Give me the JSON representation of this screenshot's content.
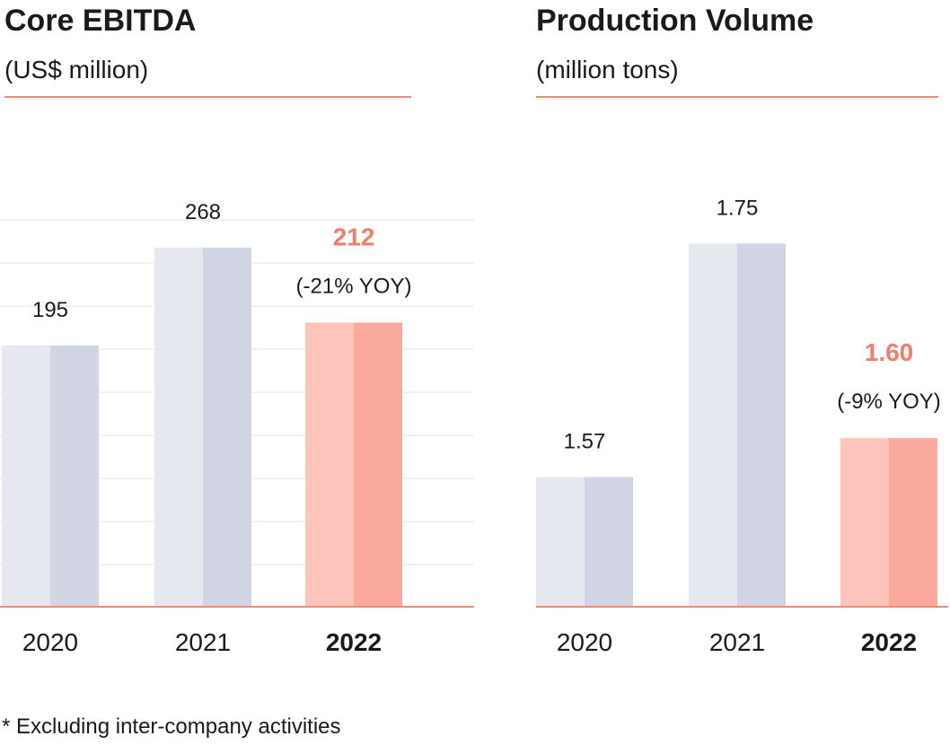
{
  "colors": {
    "neutral_light": "#e6e8f0",
    "neutral_dark": "#d1d4e2",
    "highlight_light": "#fcc4bb",
    "highlight_dark": "#f9aa9c",
    "highlight_text": "#ef7e6b",
    "baseline": "#ef8b79",
    "grid": "#eeeeee"
  },
  "chart_data": [
    {
      "type": "bar",
      "title": "Core EBITDA",
      "subtitle": "(US$ million)",
      "categories": [
        "2020",
        "2021",
        "2022"
      ],
      "values": [
        195,
        268,
        212
      ],
      "highlight_index": 2,
      "value_labels": [
        "195",
        "268",
        "212"
      ],
      "annotations": [
        "",
        "",
        "(-21% YOY)"
      ],
      "ylim": [
        0,
        300
      ],
      "grid": true
    },
    {
      "type": "bar",
      "title": "Production Volume",
      "subtitle": "(million tons)",
      "categories": [
        "2020",
        "2021",
        "2022"
      ],
      "values": [
        1.57,
        1.75,
        1.6
      ],
      "highlight_index": 2,
      "value_labels": [
        "1.57",
        "1.75",
        "1.60"
      ],
      "annotations": [
        "",
        "",
        "(-9% YOY)"
      ],
      "ylim": [
        1.47,
        1.78
      ],
      "grid": false
    }
  ],
  "footnote": "* Excluding inter-company activities"
}
